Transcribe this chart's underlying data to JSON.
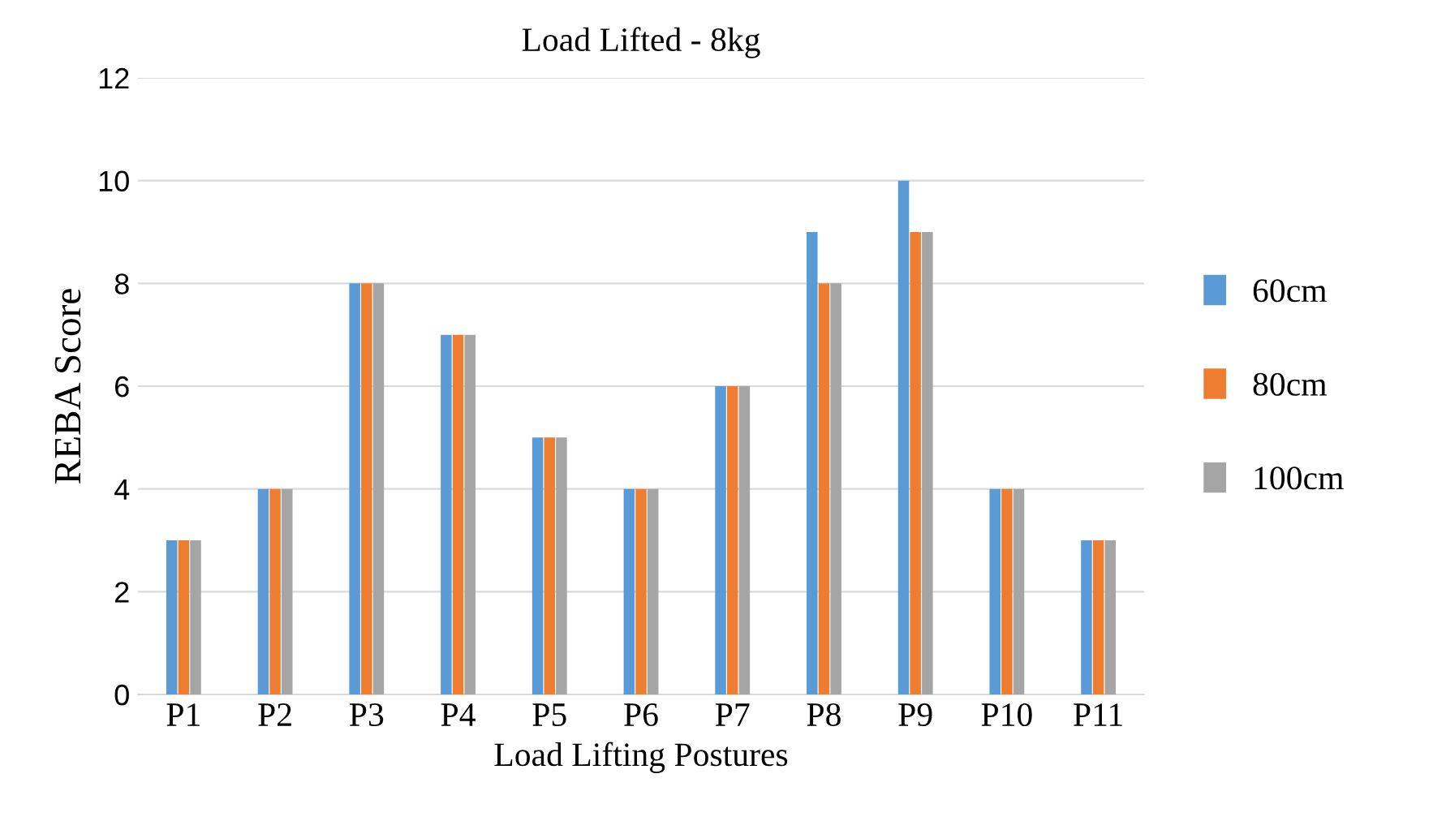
{
  "chart_data": {
    "type": "bar",
    "title": "Load Lifted - 8kg",
    "xlabel": "Load Lifting Postures",
    "ylabel": "REBA Score",
    "categories": [
      "P1",
      "P2",
      "P3",
      "P4",
      "P5",
      "P6",
      "P7",
      "P8",
      "P9",
      "P10",
      "P11"
    ],
    "series": [
      {
        "name": "60cm",
        "color": "#5b9bd5",
        "values": [
          3,
          4,
          8,
          7,
          5,
          4,
          6,
          9,
          10,
          4,
          3
        ]
      },
      {
        "name": "80cm",
        "color": "#ed7d31",
        "values": [
          3,
          4,
          8,
          7,
          5,
          4,
          6,
          8,
          9,
          4,
          3
        ]
      },
      {
        "name": "100cm",
        "color": "#a5a5a5",
        "values": [
          3,
          4,
          8,
          7,
          5,
          4,
          6,
          8,
          9,
          4,
          3
        ]
      }
    ],
    "ylim": [
      0,
      12
    ],
    "yticks": [
      0,
      2,
      4,
      6,
      8,
      10,
      12
    ],
    "grid": "y",
    "legend": "right"
  }
}
